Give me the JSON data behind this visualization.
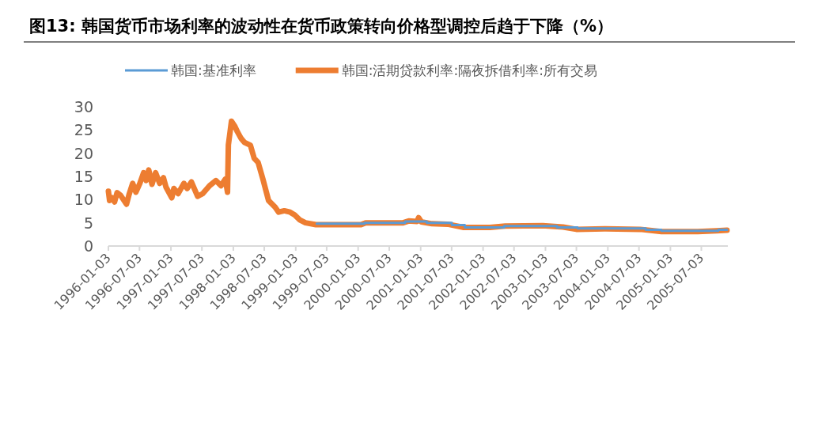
{
  "chart_data": {
    "type": "line",
    "title": "图13: 韩国货币市场利率的波动性在货币政策转向价格型调控后趋于下降（%）",
    "legend": "top",
    "xlim": [
      "1996-01-03",
      "2005-12-05"
    ],
    "ylim": [
      0,
      30
    ],
    "yticks": [
      0,
      5,
      10,
      15,
      20,
      25,
      30
    ],
    "xticks": [
      "1996-01-03",
      "1996-07-03",
      "1997-01-03",
      "1997-07-03",
      "1998-01-03",
      "1998-07-03",
      "1999-01-03",
      "1999-07-03",
      "2000-01-03",
      "2000-07-03",
      "2001-01-03",
      "2001-07-03",
      "2002-01-03",
      "2002-07-03",
      "2003-01-03",
      "2003-07-03",
      "2004-01-03",
      "2004-07-03",
      "2005-01-03",
      "2005-07-03"
    ],
    "series": [
      {
        "name": "韩国:基准利率",
        "color": "#5b9bd5",
        "x": [
          "1999-05-06",
          "2000-02-09",
          "2000-02-10",
          "2000-10-04",
          "2000-10-05",
          "2001-02-07",
          "2001-02-08",
          "2001-07-04",
          "2001-07-05",
          "2001-09-18",
          "2001-09-19",
          "2002-05-06",
          "2002-05-07",
          "2003-03-11",
          "2003-03-12",
          "2003-07-09",
          "2003-07-10",
          "2004-08-11",
          "2004-08-12",
          "2004-11-10",
          "2004-11-11",
          "2005-10-10",
          "2005-10-11",
          "2005-11-30"
        ],
        "values": [
          4.8,
          4.8,
          5.0,
          5.0,
          5.3,
          5.3,
          5.0,
          5.0,
          4.5,
          4.5,
          4.0,
          4.0,
          4.3,
          4.3,
          4.0,
          4.0,
          3.8,
          3.8,
          3.5,
          3.5,
          3.3,
          3.3,
          3.5,
          3.5
        ]
      },
      {
        "name": "韩国:活期贷款利率:隔夜拆借利率:所有交易",
        "color": "#ed7d31",
        "x": [
          "1996-01-03",
          "1996-01-10",
          "1996-01-24",
          "1996-02-08",
          "1996-02-23",
          "1996-03-15",
          "1996-04-18",
          "1996-05-03",
          "1996-05-24",
          "1996-06-12",
          "1996-07-05",
          "1996-07-27",
          "1996-08-11",
          "1996-08-26",
          "1996-09-14",
          "1996-10-05",
          "1996-10-29",
          "1996-11-20",
          "1996-12-05",
          "1997-01-08",
          "1997-01-20",
          "1997-02-14",
          "1997-03-20",
          "1997-04-08",
          "1997-05-03",
          "1997-06-08",
          "1997-07-08",
          "1997-08-17",
          "1997-09-23",
          "1997-10-23",
          "1997-11-17",
          "1997-11-30",
          "1997-12-05",
          "1997-12-23",
          "1998-01-12",
          "1998-01-27",
          "1998-02-17",
          "1998-03-10",
          "1998-04-13",
          "1998-05-05",
          "1998-05-28",
          "1998-06-25",
          "1998-07-28",
          "1998-09-04",
          "1998-09-25",
          "1998-10-28",
          "1998-12-01",
          "1998-12-28",
          "1999-01-28",
          "1999-03-01",
          "1999-05-01",
          "2000-01-20",
          "2000-02-16",
          "2000-09-22",
          "2000-10-25",
          "2000-12-13",
          "2000-12-22",
          "2001-01-07",
          "2001-03-10",
          "2001-06-10",
          "2001-09-12",
          "2002-02-12",
          "2002-05-13",
          "2002-12-18",
          "2003-04-16",
          "2003-07-03",
          "2003-12-22",
          "2004-07-10",
          "2004-11-12",
          "2005-06-12",
          "2005-09-30",
          "2005-11-30"
        ],
        "values": [
          11.8,
          9.8,
          10.4,
          9.5,
          11.5,
          10.9,
          9.0,
          11.1,
          13.5,
          11.6,
          13.5,
          15.8,
          14.1,
          16.4,
          13.3,
          15.8,
          13.5,
          14.7,
          12.7,
          10.4,
          12.4,
          11.3,
          13.5,
          12.4,
          13.8,
          10.7,
          11.3,
          13.0,
          14.1,
          13.0,
          14.4,
          11.6,
          21.8,
          26.9,
          25.8,
          24.6,
          23.2,
          22.3,
          21.7,
          18.9,
          18.0,
          14.4,
          9.8,
          8.4,
          7.3,
          7.6,
          7.3,
          6.7,
          5.6,
          5.0,
          4.6,
          4.6,
          5.0,
          5.0,
          5.4,
          5.3,
          6.1,
          5.2,
          4.8,
          4.7,
          4.0,
          4.0,
          4.3,
          4.4,
          4.1,
          3.6,
          3.7,
          3.6,
          3.1,
          3.1,
          3.3,
          3.4
        ]
      }
    ]
  }
}
